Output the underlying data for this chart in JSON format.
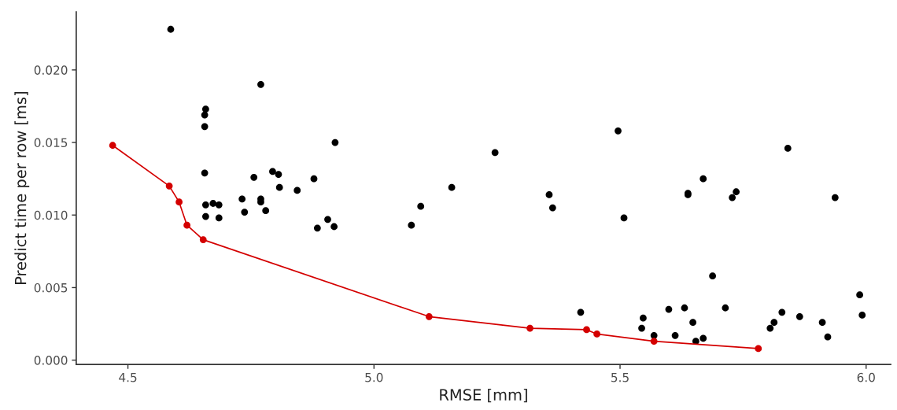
{
  "chart_data": {
    "type": "scatter",
    "xlabel": "RMSE [mm]",
    "ylabel": "Predict time per row [ms]",
    "xlim": [
      4.395,
      6.05
    ],
    "ylim": [
      -0.0003,
      0.024
    ],
    "xticks": [
      {
        "value": 4.5,
        "label": "4.5"
      },
      {
        "value": 5.0,
        "label": "5.0"
      },
      {
        "value": 5.5,
        "label": "5.5"
      },
      {
        "value": 6.0,
        "label": "6.0"
      }
    ],
    "yticks": [
      {
        "value": 0,
        "label": "0.000"
      },
      {
        "value": 0.005,
        "label": "0.005"
      },
      {
        "value": 0.01,
        "label": "0.010"
      },
      {
        "value": 0.015,
        "label": "0.015"
      },
      {
        "value": 0.02,
        "label": "0.020"
      }
    ],
    "grid": false,
    "legend": false,
    "marker": "circle",
    "series": [
      {
        "color": "#000000",
        "x": [
          4.587,
          4.77,
          4.658,
          4.656,
          4.656,
          4.921,
          4.656,
          4.756,
          4.794,
          4.806,
          4.878,
          4.808,
          4.844,
          4.732,
          4.77,
          4.77,
          4.658,
          4.673,
          4.685,
          4.737,
          4.78,
          4.658,
          4.685,
          4.906,
          4.885,
          4.919,
          5.076,
          5.095,
          5.158,
          5.246,
          5.356,
          5.363,
          5.496,
          5.508,
          5.42,
          5.841,
          5.669,
          5.638,
          5.638,
          5.736,
          5.728,
          5.937,
          5.688,
          5.987,
          5.992,
          5.599,
          5.631,
          5.714,
          5.547,
          5.544,
          5.648,
          5.569,
          5.612,
          5.654,
          5.669,
          5.829,
          5.865,
          5.813,
          5.805,
          5.911,
          5.922
        ],
        "values": [
          0.0228,
          0.019,
          0.0173,
          0.0169,
          0.0161,
          0.015,
          0.0129,
          0.0126,
          0.013,
          0.0128,
          0.0125,
          0.0119,
          0.0117,
          0.0111,
          0.0111,
          0.0109,
          0.0107,
          0.0108,
          0.0107,
          0.0102,
          0.0103,
          0.0099,
          0.0098,
          0.0097,
          0.0091,
          0.0092,
          0.0093,
          0.0106,
          0.0119,
          0.0143,
          0.0114,
          0.0105,
          0.0158,
          0.0098,
          0.0033,
          0.0146,
          0.0125,
          0.0115,
          0.0114,
          0.0116,
          0.0112,
          0.0112,
          0.0058,
          0.0045,
          0.0031,
          0.0035,
          0.0036,
          0.0036,
          0.0029,
          0.0022,
          0.0026,
          0.0017,
          0.0017,
          0.0013,
          0.0015,
          0.0033,
          0.003,
          0.0026,
          0.0022,
          0.0026,
          0.0016
        ]
      },
      {
        "type": "line",
        "color": "#d40000",
        "x": [
          4.469,
          4.584,
          4.604,
          4.62,
          4.653,
          5.112,
          5.317,
          5.432,
          5.453,
          5.569,
          5.781
        ],
        "values": [
          0.0148,
          0.012,
          0.0109,
          0.0093,
          0.0083,
          0.003,
          0.0022,
          0.0021,
          0.0018,
          0.0013,
          0.0008
        ]
      }
    ]
  }
}
